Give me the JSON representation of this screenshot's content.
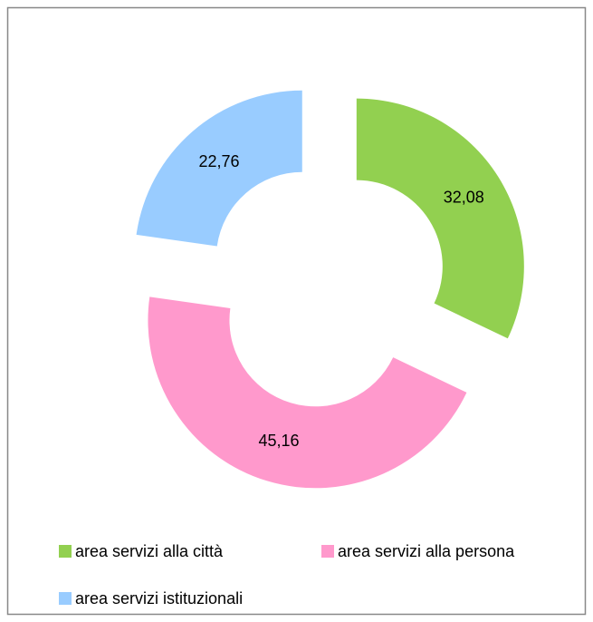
{
  "chart_data": {
    "type": "donut",
    "categories": [
      "area servizi alla città",
      "area servizi alla persona",
      "area servizi istituzionali"
    ],
    "values": [
      32.08,
      45.16,
      22.76
    ],
    "value_labels": [
      "32,08",
      "45,16",
      "22,76"
    ],
    "colors": [
      "#92d050",
      "#ff99cc",
      "#99ccff"
    ],
    "legend": "bottom"
  }
}
